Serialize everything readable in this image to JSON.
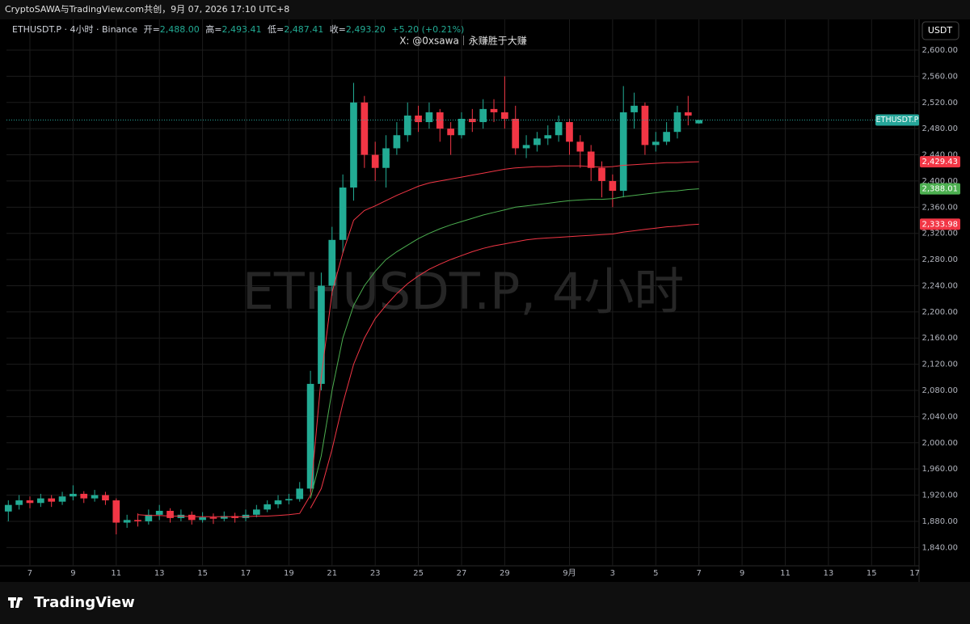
{
  "chart_data": {
    "type": "candlestick",
    "top_note": "CryptoSAWA与TradingView.com共创，9月 07, 2026 17:10 UTC+8",
    "header": {
      "symbol": "ETHUSDT.P · 4小时 · Binance",
      "fields": [
        {
          "label": "开=",
          "value": "2,488.00"
        },
        {
          "label": "高=",
          "value": "2,493.41"
        },
        {
          "label": "低=",
          "value": "2,487.41"
        },
        {
          "label": "收=",
          "value": "2,493.20"
        }
      ],
      "change": "+5.20 (+0.21%)"
    },
    "subtitle": "X: @0xsawa｜永赚胜于大赚",
    "watermark": "ETHUSDT.P, 4小时",
    "currency_button": "USDT",
    "footer": "TradingView",
    "up_color": "#22ab94",
    "down_color": "#f23645",
    "x": [
      -1,
      -0.5,
      0,
      0.5,
      1,
      1.5,
      2,
      2.5,
      3,
      3.5,
      4,
      4.5,
      5,
      5.5,
      6,
      6.5,
      7,
      7.5,
      8,
      8.5,
      9,
      9.5,
      10,
      10.5,
      11,
      11.5,
      12,
      12.5,
      13,
      13.5,
      14,
      14.5,
      15,
      15.5,
      16,
      16.5,
      17,
      17.5,
      18,
      18.5,
      19,
      19.5,
      20,
      20.5,
      21,
      21.5,
      22,
      22.5,
      23,
      23.5,
      24,
      24.5,
      25,
      25.5,
      26,
      26.5,
      27,
      27.5,
      28,
      28.5,
      29,
      29.5,
      30,
      30.5,
      31
    ],
    "open": [
      1895,
      1905,
      1912,
      1908,
      1915,
      1910,
      1918,
      1922,
      1915,
      1920,
      1912,
      1878,
      1882,
      1880,
      1890,
      1896,
      1885,
      1890,
      1882,
      1886,
      1884,
      1888,
      1885,
      1890,
      1898,
      1906,
      1912,
      1914,
      1930,
      2090,
      2240,
      2310,
      2390,
      2520,
      2440,
      2420,
      2450,
      2470,
      2500,
      2490,
      2505,
      2480,
      2470,
      2495,
      2490,
      2510,
      2505,
      2495,
      2450,
      2455,
      2465,
      2470,
      2490,
      2460,
      2445,
      2420,
      2400,
      2385,
      2505,
      2515,
      2455,
      2460,
      2475,
      2505,
      2488
    ],
    "high": [
      1912,
      1920,
      1918,
      1922,
      1920,
      1925,
      1935,
      1926,
      1928,
      1925,
      1915,
      1890,
      1892,
      1898,
      1905,
      1900,
      1898,
      1895,
      1894,
      1892,
      1895,
      1893,
      1898,
      1905,
      1912,
      1920,
      1922,
      1940,
      2110,
      2260,
      2330,
      2410,
      2550,
      2530,
      2460,
      2470,
      2490,
      2520,
      2515,
      2520,
      2510,
      2490,
      2505,
      2510,
      2525,
      2525,
      2560,
      2515,
      2470,
      2475,
      2485,
      2500,
      2495,
      2470,
      2455,
      2430,
      2410,
      2545,
      2535,
      2520,
      2475,
      2490,
      2515,
      2530,
      2493.41
    ],
    "low": [
      1880,
      1898,
      1900,
      1902,
      1902,
      1905,
      1912,
      1908,
      1910,
      1905,
      1860,
      1870,
      1872,
      1875,
      1882,
      1878,
      1880,
      1875,
      1878,
      1876,
      1880,
      1878,
      1880,
      1886,
      1894,
      1900,
      1906,
      1910,
      1925,
      2080,
      2225,
      2290,
      2370,
      2420,
      2400,
      2390,
      2440,
      2460,
      2475,
      2480,
      2460,
      2440,
      2465,
      2475,
      2480,
      2490,
      2480,
      2440,
      2435,
      2445,
      2455,
      2460,
      2440,
      2420,
      2400,
      2375,
      2360,
      2375,
      2480,
      2440,
      2445,
      2455,
      2465,
      2485,
      2487.41
    ],
    "close": [
      1905,
      1912,
      1908,
      1915,
      1910,
      1918,
      1922,
      1915,
      1920,
      1912,
      1878,
      1882,
      1880,
      1890,
      1896,
      1885,
      1890,
      1882,
      1886,
      1884,
      1888,
      1885,
      1890,
      1898,
      1906,
      1912,
      1914,
      1930,
      2090,
      2240,
      2310,
      2390,
      2520,
      2440,
      2420,
      2450,
      2470,
      2500,
      2490,
      2505,
      2480,
      2470,
      2495,
      2490,
      2510,
      2505,
      2495,
      2450,
      2455,
      2465,
      2470,
      2490,
      2460,
      2445,
      2420,
      2400,
      2385,
      2505,
      2515,
      2455,
      2460,
      2475,
      2505,
      2500,
      2493.2
    ],
    "bands": [
      {
        "color": "#f23645",
        "values": [
          null,
          null,
          null,
          null,
          null,
          null,
          null,
          null,
          null,
          null,
          null,
          null,
          1890,
          1889,
          1889,
          1888,
          1888,
          1887,
          1887,
          1887,
          1887,
          1887,
          1887,
          1888,
          1888,
          1889,
          1890,
          1892,
          1920,
          2100,
          2230,
          2290,
          2340,
          2355,
          2362,
          2370,
          2378,
          2385,
          2392,
          2397,
          2400,
          2403,
          2406,
          2409,
          2412,
          2415,
          2418,
          2420,
          2421,
          2422,
          2422,
          2423,
          2423,
          2423,
          2422,
          2421,
          2422,
          2424,
          2425,
          2426,
          2427,
          2428,
          2428,
          2429,
          2429.43
        ]
      },
      {
        "color": "#4caf50",
        "values": [
          null,
          null,
          null,
          null,
          null,
          null,
          null,
          null,
          null,
          null,
          null,
          null,
          null,
          null,
          null,
          null,
          null,
          null,
          null,
          null,
          null,
          null,
          null,
          null,
          null,
          null,
          null,
          null,
          1915,
          1980,
          2080,
          2160,
          2210,
          2240,
          2262,
          2280,
          2292,
          2302,
          2312,
          2320,
          2327,
          2333,
          2338,
          2343,
          2348,
          2352,
          2356,
          2360,
          2362,
          2364,
          2366,
          2368,
          2370,
          2371,
          2372,
          2372,
          2373,
          2376,
          2378,
          2380,
          2382,
          2384,
          2385,
          2387,
          2388.01
        ]
      },
      {
        "color": "#f23645",
        "values": [
          null,
          null,
          null,
          null,
          null,
          null,
          null,
          null,
          null,
          null,
          null,
          null,
          null,
          null,
          null,
          null,
          null,
          null,
          null,
          null,
          null,
          null,
          null,
          null,
          null,
          null,
          null,
          null,
          1900,
          1930,
          1990,
          2060,
          2120,
          2160,
          2190,
          2210,
          2228,
          2243,
          2255,
          2265,
          2273,
          2280,
          2286,
          2292,
          2297,
          2301,
          2304,
          2307,
          2310,
          2312,
          2313,
          2314,
          2315,
          2316,
          2317,
          2318,
          2319,
          2322,
          2324,
          2326,
          2328,
          2330,
          2331,
          2333,
          2333.98
        ]
      }
    ],
    "price_tags": [
      {
        "value": 2429.43,
        "label": "2,429.43",
        "color": "#f23645"
      },
      {
        "value": 2388.01,
        "label": "2,388.01",
        "color": "#4caf50"
      },
      {
        "value": 2333.98,
        "label": "2,333.98",
        "color": "#f23645"
      }
    ],
    "last_price": {
      "value": 2493.2,
      "label": "ETHUSDT.P",
      "color": "#26a69a"
    },
    "xlim": [
      -1.086,
      41.2
    ],
    "ylim": [
      1812,
      2642
    ],
    "xticks": [
      {
        "value": 0,
        "label": "7"
      },
      {
        "value": 2,
        "label": "9"
      },
      {
        "value": 4,
        "label": "11"
      },
      {
        "value": 6,
        "label": "13"
      },
      {
        "value": 8,
        "label": "15"
      },
      {
        "value": 10,
        "label": "17"
      },
      {
        "value": 12,
        "label": "19"
      },
      {
        "value": 14,
        "label": "21"
      },
      {
        "value": 16,
        "label": "23"
      },
      {
        "value": 18,
        "label": "25"
      },
      {
        "value": 20,
        "label": "27"
      },
      {
        "value": 22,
        "label": "29"
      },
      {
        "value": 25,
        "label": "9月"
      },
      {
        "value": 27,
        "label": "3"
      },
      {
        "value": 29,
        "label": "5"
      },
      {
        "value": 31,
        "label": "7"
      },
      {
        "value": 33,
        "label": "9"
      },
      {
        "value": 35,
        "label": "11"
      },
      {
        "value": 37,
        "label": "13"
      },
      {
        "value": 39,
        "label": "15"
      },
      {
        "value": 41,
        "label": "17"
      }
    ],
    "yticks": [
      {
        "value": 1840,
        "label": "1,840.00"
      },
      {
        "value": 1880,
        "label": "1,880.00"
      },
      {
        "value": 1920,
        "label": "1,920.00"
      },
      {
        "value": 1960,
        "label": "1,960.00"
      },
      {
        "value": 2000,
        "label": "2,000.00"
      },
      {
        "value": 2040,
        "label": "2,040.00"
      },
      {
        "value": 2080,
        "label": "2,080.00"
      },
      {
        "value": 2120,
        "label": "2,120.00"
      },
      {
        "value": 2160,
        "label": "2,160.00"
      },
      {
        "value": 2200,
        "label": "2,200.00"
      },
      {
        "value": 2240,
        "label": "2,240.00"
      },
      {
        "value": 2280,
        "label": "2,280.00"
      },
      {
        "value": 2320,
        "label": "2,320.00"
      },
      {
        "value": 2360,
        "label": "2,360.00"
      },
      {
        "value": 2400,
        "label": "2,400.00"
      },
      {
        "value": 2440,
        "label": "2,440.00"
      },
      {
        "value": 2480,
        "label": "2,480.00"
      },
      {
        "value": 2520,
        "label": "2,520.00"
      },
      {
        "value": 2560,
        "label": "2,560.00"
      },
      {
        "value": 2600,
        "label": "2,600.00"
      }
    ],
    "grid": true
  }
}
